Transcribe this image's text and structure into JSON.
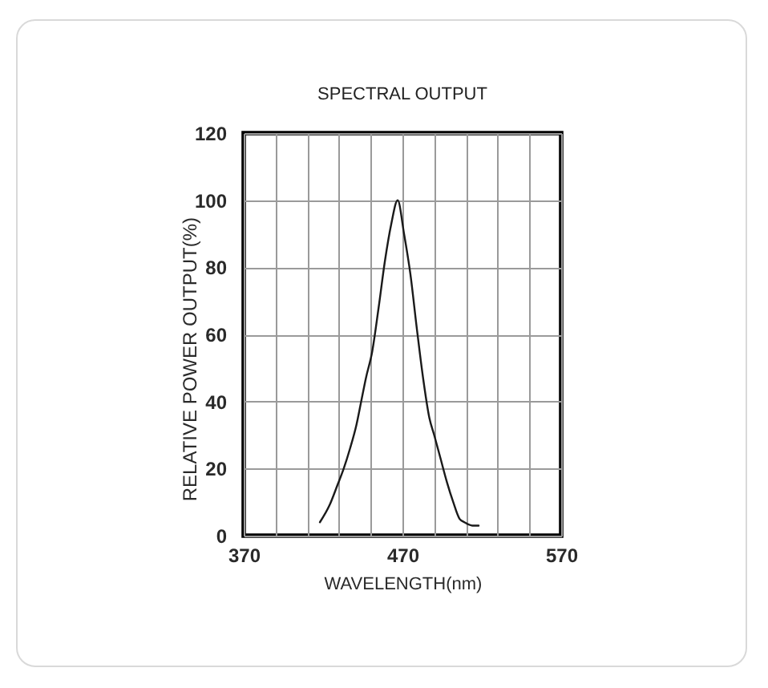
{
  "chart_data": {
    "type": "line",
    "title": "SPECTRAL OUTPUT",
    "xlabel": "WAVELENGTH(nm)",
    "ylabel": "RELATIVE POWER OUTPUT(%)",
    "x": [
      418,
      424,
      429,
      433,
      437,
      441,
      444,
      447,
      451,
      455,
      459,
      463,
      467,
      471,
      475,
      479,
      483,
      487,
      490,
      494,
      498,
      502,
      506,
      509,
      514,
      518
    ],
    "values": [
      4,
      9,
      15,
      20,
      26,
      33,
      40,
      47,
      55,
      68,
      82,
      93,
      100,
      90,
      78,
      62,
      47,
      35,
      30,
      23,
      16,
      10,
      5,
      4,
      3,
      3
    ],
    "color": "#1a1a1a",
    "xlim": [
      370,
      570
    ],
    "ylim": [
      0,
      120
    ],
    "xticks": [
      370,
      {
        "value": 390,
        "label": null
      },
      {
        "value": 410,
        "label": null
      },
      {
        "value": 430,
        "label": null
      },
      {
        "value": 450,
        "label": null
      },
      470,
      {
        "value": 490,
        "label": null
      },
      {
        "value": 510,
        "label": null
      },
      {
        "value": 530,
        "label": null
      },
      {
        "value": 550,
        "label": null
      },
      570
    ],
    "yticks": [
      0,
      20,
      40,
      60,
      80,
      100,
      120
    ],
    "grid": true
  }
}
